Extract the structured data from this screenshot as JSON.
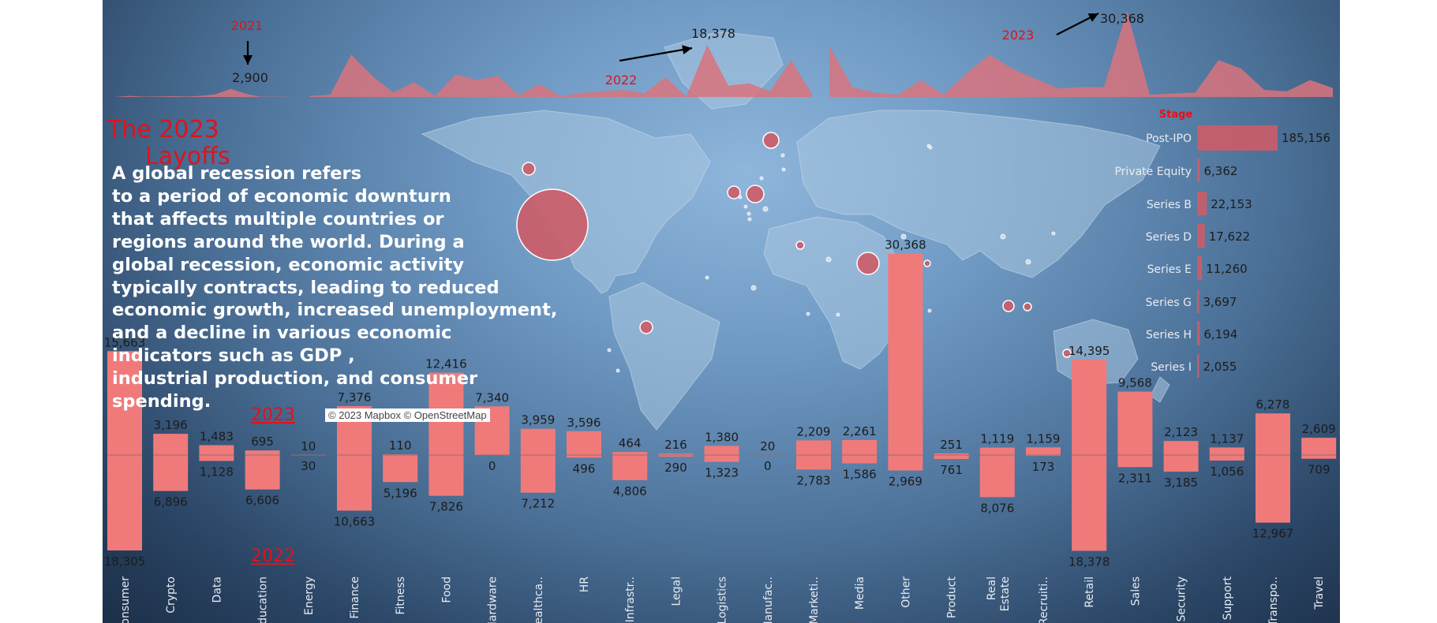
{
  "dashboard": {
    "title_line1": "The 2023",
    "title_line2": "Layoffs",
    "description_lines": [
      "A global recession refers",
      "to a period of economic downturn",
      "that affects multiple countries or",
      "regions around the world. During a",
      "global recession, economic activity",
      "typically contracts, leading to reduced",
      "economic growth, increased unemployment,",
      "and a decline in various economic",
      "indicators such as GDP ,",
      "industrial production, and consumer",
      "spending."
    ],
    "map_attribution": "© 2023 Mapbox © OpenStreetMap",
    "colors": {
      "accent": "#e0121b",
      "bar_fill": "#f07a7a",
      "area_fill": "#d9737c",
      "bubble_fill": "#cd5c68",
      "text_dark": "#1c1c1c",
      "text_light": "#e8ecf2"
    }
  },
  "chart_data": [
    {
      "type": "area",
      "title": "",
      "description": "Layoffs over time, split into 2021, 2022 and 2023 segments",
      "segments": [
        {
          "name": "2021",
          "values": [
            10,
            400,
            150,
            180,
            300,
            160,
            420,
            1000,
            2900,
            1200,
            120,
            100,
            80
          ]
        },
        {
          "name": "2022",
          "values": [
            300,
            800,
            15000,
            7500,
            1600,
            5200,
            400,
            8000,
            6000,
            7500,
            700,
            4500,
            300,
            1400,
            2000,
            2500,
            1300,
            7000,
            200,
            18378,
            4000,
            4800,
            2000,
            13000,
            1000
          ]
        },
        {
          "name": "2023",
          "values": [
            18000,
            3500,
            1500,
            800,
            6000,
            800,
            8500,
            15000,
            10000,
            6500,
            3000,
            3500,
            3500,
            30368,
            800,
            1200,
            1600,
            13000,
            10000,
            2500,
            2000,
            6000,
            3200
          ]
        }
      ],
      "annotations": [
        {
          "label": "2021",
          "value": "2,900"
        },
        {
          "label": "2022",
          "value": "18,378"
        },
        {
          "label": "2023",
          "value": "30,368"
        }
      ]
    },
    {
      "type": "bar",
      "title": "Stage",
      "categories": [
        "Post-IPO",
        "Private Equity",
        "Series B",
        "Series D",
        "Series E",
        "Series G",
        "Series H",
        "Series I"
      ],
      "values": [
        185156,
        6362,
        22153,
        17622,
        11260,
        3697,
        6194,
        2055
      ],
      "labels": [
        "185,156",
        "6,362",
        "22,153",
        "17,622",
        "11,260",
        "3,697",
        "6,194",
        "2,055"
      ],
      "orientation": "horizontal"
    },
    {
      "type": "bar",
      "title": "",
      "description": "Layoffs by industry: 2023 above the axis, 2022 below the axis",
      "categories": [
        "Consumer",
        "Crypto",
        "Data",
        "Education",
        "Energy",
        "Finance",
        "Fitness",
        "Food",
        "Hardware",
        "Healthca..",
        "HR",
        "Infrastr..",
        "Legal",
        "Logistics",
        "Manufac..",
        "Marketi..",
        "Media",
        "Other",
        "Product",
        "Real Estate",
        "Recruiti..",
        "Retail",
        "Sales",
        "Security",
        "Support",
        "Transpo..",
        "Travel"
      ],
      "series": [
        {
          "name": "2023",
          "values": [
            15663,
            3196,
            1483,
            695,
            10,
            7376,
            110,
            12416,
            7340,
            3959,
            3596,
            464,
            216,
            1380,
            20,
            2209,
            2261,
            30368,
            251,
            1119,
            1159,
            14395,
            9568,
            2123,
            1137,
            6278,
            2609
          ],
          "labels": [
            "15,663",
            "3,196",
            "1,483",
            "695",
            "10",
            "7,376",
            "110",
            "12,416",
            "7,340",
            "3,959",
            "3,596",
            "464",
            "216",
            "1,380",
            "20",
            "2,209",
            "2,261",
            "30,368",
            "251",
            "1,119",
            "1,159",
            "14,395",
            "9,568",
            "2,123",
            "1,137",
            "6,278",
            "2,609"
          ]
        },
        {
          "name": "2022",
          "values": [
            18305,
            6896,
            1128,
            6606,
            30,
            10663,
            5196,
            7826,
            0,
            7212,
            496,
            4806,
            290,
            1323,
            0,
            2783,
            1586,
            2969,
            761,
            8076,
            173,
            18378,
            2311,
            3185,
            1056,
            12967,
            709
          ],
          "labels": [
            "18,305",
            "6,896",
            "1,128",
            "6,606",
            "30",
            "10,663",
            "5,196",
            "7,826",
            "0",
            "7,212",
            "496",
            "4,806",
            "290",
            "1,323",
            "0",
            "2,783",
            "1,586",
            "2,969",
            "761",
            "8,076",
            "173",
            "18,378",
            "2,311",
            "3,185",
            "1,056",
            "12,967",
            "709"
          ]
        }
      ],
      "series_labels": {
        "top": "2023",
        "bottom": "2022"
      }
    },
    {
      "type": "scatter",
      "title": "",
      "description": "Bubble map of layoffs by location (world map background)"
    }
  ]
}
